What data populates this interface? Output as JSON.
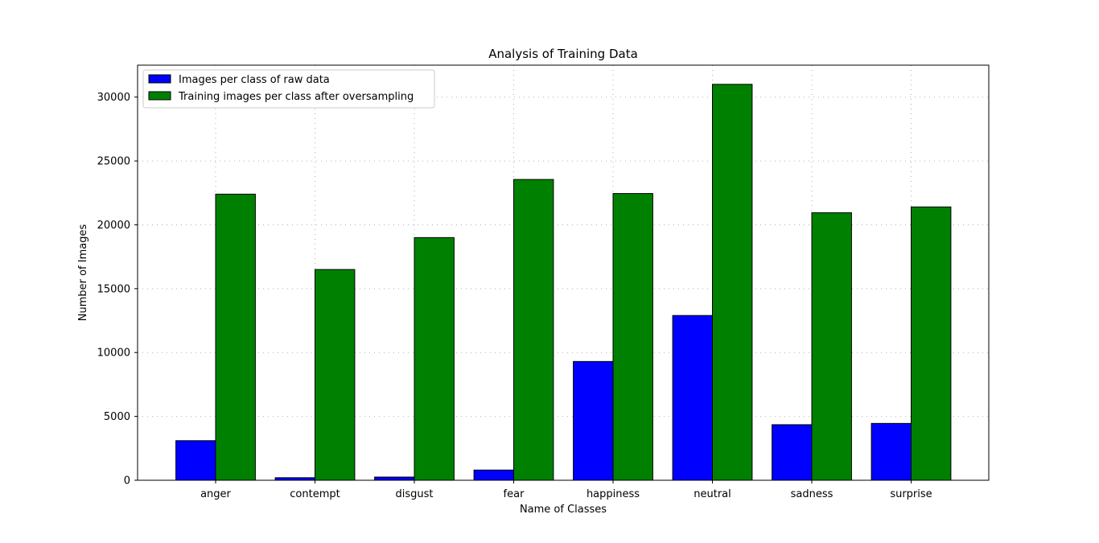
{
  "chart_data": {
    "type": "bar",
    "title": "Analysis of Training Data",
    "xlabel": "Name of Classes",
    "ylabel": "Number of Images",
    "categories": [
      "anger",
      "contempt",
      "disgust",
      "fear",
      "happiness",
      "neutral",
      "sadness",
      "surprise"
    ],
    "series": [
      {
        "name": "Images per class of raw data",
        "color": "#0000ff",
        "values": [
          3100,
          200,
          250,
          800,
          9300,
          12900,
          4350,
          4450
        ]
      },
      {
        "name": "Training images per class after oversampling",
        "color": "#008000",
        "values": [
          22400,
          16500,
          19000,
          23550,
          22450,
          31000,
          20950,
          21400
        ]
      }
    ],
    "ylim": [
      0,
      32500
    ],
    "yticks": [
      0,
      5000,
      10000,
      15000,
      20000,
      25000,
      30000
    ],
    "grid": true,
    "legend_position": "top-left"
  }
}
